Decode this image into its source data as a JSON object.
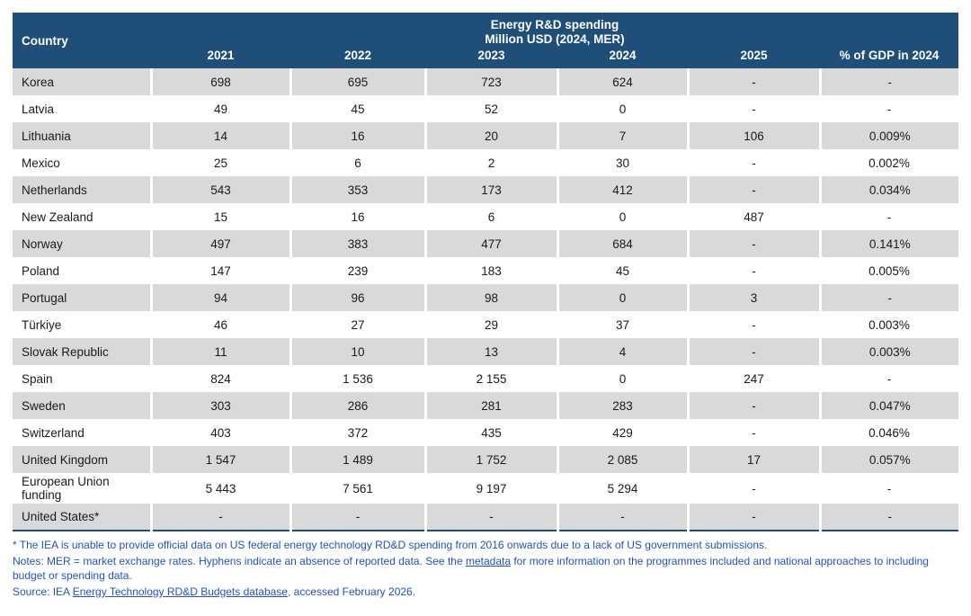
{
  "table": {
    "title_line1": "Energy R&D spending",
    "title_line2": "Million USD (2024, MER)",
    "country_header": "Country",
    "year_headers": [
      "2021",
      "2022",
      "2023",
      "2024",
      "2025",
      "% of GDP in 2024"
    ],
    "rows": [
      {
        "country": "Korea",
        "values": [
          "698",
          "695",
          "723",
          "624",
          "-",
          "-"
        ]
      },
      {
        "country": "Latvia",
        "values": [
          "49",
          "45",
          "52",
          "0",
          "-",
          "-"
        ]
      },
      {
        "country": "Lithuania",
        "values": [
          "14",
          "16",
          "20",
          "7",
          "106",
          "0.009%"
        ]
      },
      {
        "country": "Mexico",
        "values": [
          "25",
          "6",
          "2",
          "30",
          "-",
          "0.002%"
        ]
      },
      {
        "country": "Netherlands",
        "values": [
          "543",
          "353",
          "173",
          "412",
          "-",
          "0.034%"
        ]
      },
      {
        "country": "New Zealand",
        "values": [
          "15",
          "16",
          "6",
          "0",
          "487",
          "-"
        ]
      },
      {
        "country": "Norway",
        "values": [
          "497",
          "383",
          "477",
          "684",
          "-",
          "0.141%"
        ]
      },
      {
        "country": "Poland",
        "values": [
          "147",
          "239",
          "183",
          "45",
          "-",
          "0.005%"
        ]
      },
      {
        "country": "Portugal",
        "values": [
          "94",
          "96",
          "98",
          "0",
          "3",
          "-"
        ]
      },
      {
        "country": "Türkiye",
        "values": [
          "46",
          "27",
          "29",
          "37",
          "-",
          "0.003%"
        ]
      },
      {
        "country": "Slovak Republic",
        "values": [
          "11",
          "10",
          "13",
          "4",
          "-",
          "0.003%"
        ]
      },
      {
        "country": "Spain",
        "values": [
          "824",
          "1 536",
          "2 155",
          "0",
          "247",
          "-"
        ]
      },
      {
        "country": "Sweden",
        "values": [
          "303",
          "286",
          "281",
          "283",
          "-",
          "0.047%"
        ]
      },
      {
        "country": "Switzerland",
        "values": [
          "403",
          "372",
          "435",
          "429",
          "-",
          "0.046%"
        ]
      },
      {
        "country": "United Kingdom",
        "values": [
          "1 547",
          "1 489",
          "1 752",
          "2 085",
          "17",
          "0.057%"
        ]
      },
      {
        "country": "European Union funding",
        "values": [
          "5 443",
          "7 561",
          "9 197",
          "5 294",
          "-",
          "-"
        ]
      },
      {
        "country": "United States*",
        "values": [
          "-",
          "-",
          "-",
          "-",
          "-",
          "-"
        ]
      }
    ]
  },
  "footnotes": {
    "asterisk": "* The IEA is unable to provide official data on US federal energy technology RD&D spending from 2016 onwards due to a lack of US government submissions.",
    "notes_before": "Notes: MER = market exchange rates. Hyphens indicate an absence of reported data. See the ",
    "metadata_link": "metadata",
    "notes_after": " for more information on the programmes included and national approaches to including budget or spending data.",
    "source_before": "Source: IEA ",
    "database_link": "Energy Technology RD&D Budgets database",
    "source_after": ", accessed February 2026."
  },
  "colors": {
    "header_navy": "#1F4E79",
    "row_gray": "#D9D9D9",
    "note_blue": "#2151C8"
  },
  "chart_data": {
    "type": "table",
    "title": "Energy R&D spending Million USD (2024, MER)",
    "columns": [
      "Country",
      "2021",
      "2022",
      "2023",
      "2024",
      "2025",
      "% of GDP in 2024"
    ],
    "rows": [
      [
        "Korea",
        "698",
        "695",
        "723",
        "624",
        "-",
        "-"
      ],
      [
        "Latvia",
        "49",
        "45",
        "52",
        "0",
        "-",
        "-"
      ],
      [
        "Lithuania",
        "14",
        "16",
        "20",
        "7",
        "106",
        "0.009%"
      ],
      [
        "Mexico",
        "25",
        "6",
        "2",
        "30",
        "-",
        "0.002%"
      ],
      [
        "Netherlands",
        "543",
        "353",
        "173",
        "412",
        "-",
        "0.034%"
      ],
      [
        "New Zealand",
        "15",
        "16",
        "6",
        "0",
        "487",
        "-"
      ],
      [
        "Norway",
        "497",
        "383",
        "477",
        "684",
        "-",
        "0.141%"
      ],
      [
        "Poland",
        "147",
        "239",
        "183",
        "45",
        "-",
        "0.005%"
      ],
      [
        "Portugal",
        "94",
        "96",
        "98",
        "0",
        "3",
        "-"
      ],
      [
        "Türkiye",
        "46",
        "27",
        "29",
        "37",
        "-",
        "0.003%"
      ],
      [
        "Slovak Republic",
        "11",
        "10",
        "13",
        "4",
        "-",
        "0.003%"
      ],
      [
        "Spain",
        "824",
        "1 536",
        "2 155",
        "0",
        "247",
        "-"
      ],
      [
        "Sweden",
        "303",
        "286",
        "281",
        "283",
        "-",
        "0.047%"
      ],
      [
        "Switzerland",
        "403",
        "372",
        "435",
        "429",
        "-",
        "0.046%"
      ],
      [
        "United Kingdom",
        "1 547",
        "1 489",
        "1 752",
        "2 085",
        "17",
        "0.057%"
      ],
      [
        "European Union funding",
        "5 443",
        "7 561",
        "9 197",
        "5 294",
        "-",
        "-"
      ],
      [
        "United States*",
        "-",
        "-",
        "-",
        "-",
        "-",
        "-"
      ]
    ]
  }
}
